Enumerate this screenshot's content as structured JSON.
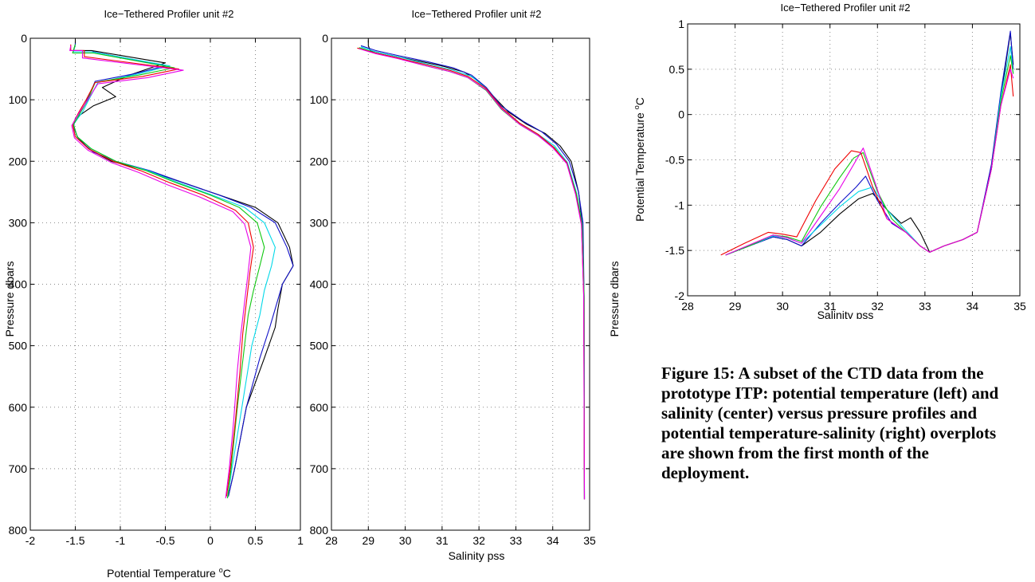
{
  "colors": {
    "black": "#000000",
    "blue": "#1010c8",
    "cyan": "#00d8e8",
    "green": "#10c810",
    "magenta": "#e800e8",
    "red": "#f00000",
    "grid": "#8a8a8a"
  },
  "caption": "Figure 15: A subset of the CTD data from the prototype ITP: potential temperature (left) and salinity (center) versus pressure profiles and potential temperature-salinity (right) overplots are shown from the first month of the deployment.",
  "chart_data": [
    {
      "type": "line",
      "title": "Ice−Tethered Profiler unit #2",
      "xlabel": "Potential Temperature °C",
      "xlabel_main": "Potential Temperature ",
      "xlabel_sup": "o",
      "xlabel_tail": "C",
      "ylabel": "Pressure  dbars",
      "xlim": [
        -2,
        1
      ],
      "ylim": [
        800,
        0
      ],
      "xticks": [
        "-2",
        "-1.5",
        "-1",
        "-0.5",
        "0",
        "0.5",
        "1"
      ],
      "yticks": [
        "0",
        "100",
        "200",
        "300",
        "400",
        "500",
        "600",
        "700",
        "800"
      ],
      "grid": true,
      "series": [
        {
          "color": "black",
          "x": [
            -1.5,
            -1.5,
            -1.52,
            -1.32,
            -0.5,
            -0.9,
            -1.2,
            -1.05,
            -1.3,
            -1.45,
            -1.52,
            -1.48,
            -1.35,
            -1.1,
            -0.7,
            -0.3,
            0.1,
            0.5,
            0.75,
            0.88,
            0.92,
            0.8,
            0.75,
            0.72,
            0.6,
            0.4,
            0.27,
            0.2
          ],
          "y": [
            5,
            10,
            20,
            20,
            40,
            60,
            80,
            95,
            110,
            125,
            140,
            160,
            180,
            200,
            215,
            235,
            255,
            275,
            300,
            340,
            370,
            400,
            440,
            470,
            520,
            600,
            700,
            745
          ]
        },
        {
          "color": "blue",
          "x": [
            -1.5,
            -1.5,
            -1.52,
            -1.3,
            -0.5,
            -0.85,
            -1.28,
            -1.35,
            -1.42,
            -1.5,
            -1.52,
            -1.46,
            -1.3,
            -1.05,
            -0.68,
            -0.3,
            0.1,
            0.45,
            0.72,
            0.85,
            0.92,
            0.8,
            0.72,
            0.66,
            0.55,
            0.4,
            0.27,
            0.2
          ],
          "y": [
            8,
            10,
            22,
            22,
            45,
            58,
            70,
            95,
            115,
            130,
            145,
            165,
            185,
            200,
            215,
            235,
            255,
            275,
            300,
            340,
            370,
            400,
            440,
            470,
            520,
            600,
            700,
            745
          ]
        },
        {
          "color": "cyan",
          "x": [
            -1.5,
            -1.52,
            -1.32,
            -0.45,
            -0.8,
            -1.25,
            -1.35,
            -1.42,
            -1.52,
            -1.48,
            -1.32,
            -1.05,
            -0.7,
            -0.35,
            0.02,
            0.38,
            0.6,
            0.72,
            0.68,
            0.6,
            0.55,
            0.46,
            0.35,
            0.24,
            0.19
          ],
          "y": [
            10,
            22,
            22,
            45,
            58,
            72,
            100,
            120,
            140,
            160,
            180,
            200,
            215,
            235,
            255,
            275,
            300,
            340,
            370,
            410,
            450,
            500,
            600,
            700,
            748
          ]
        },
        {
          "color": "green",
          "x": [
            -1.5,
            -1.53,
            -1.3,
            -0.4,
            -0.8,
            -1.28,
            -1.36,
            -1.44,
            -1.52,
            -1.48,
            -1.32,
            -1.05,
            -0.72,
            -0.38,
            0,
            0.32,
            0.52,
            0.6,
            0.55,
            0.48,
            0.42,
            0.38,
            0.3,
            0.23,
            0.19
          ],
          "y": [
            10,
            24,
            24,
            48,
            60,
            72,
            100,
            120,
            140,
            160,
            180,
            200,
            215,
            235,
            255,
            275,
            300,
            340,
            370,
            410,
            450,
            500,
            600,
            700,
            748
          ]
        },
        {
          "color": "red",
          "x": [
            -1.55,
            -1.55,
            -1.4,
            -1.4,
            -0.35,
            -0.75,
            -1.28,
            -1.38,
            -1.46,
            -1.53,
            -1.5,
            -1.35,
            -1.08,
            -0.78,
            -0.45,
            -0.08,
            0.28,
            0.42,
            0.48,
            0.44,
            0.4,
            0.36,
            0.33,
            0.28,
            0.22,
            0.18
          ],
          "y": [
            10,
            20,
            20,
            30,
            50,
            62,
            72,
            100,
            120,
            140,
            160,
            180,
            200,
            215,
            235,
            255,
            280,
            300,
            340,
            380,
            430,
            480,
            540,
            620,
            700,
            745
          ]
        },
        {
          "color": "magenta",
          "x": [
            -1.55,
            -1.56,
            -1.42,
            -1.42,
            -0.3,
            -0.7,
            -1.25,
            -1.37,
            -1.46,
            -1.54,
            -1.51,
            -1.36,
            -1.1,
            -0.8,
            -0.48,
            -0.12,
            0.25,
            0.38,
            0.45,
            0.42,
            0.38,
            0.34,
            0.3,
            0.26,
            0.21,
            0.17
          ],
          "y": [
            12,
            20,
            20,
            32,
            52,
            64,
            74,
            102,
            122,
            142,
            162,
            182,
            202,
            218,
            238,
            258,
            282,
            302,
            340,
            380,
            430,
            480,
            540,
            620,
            700,
            748
          ]
        }
      ]
    },
    {
      "type": "line",
      "title": "Ice−Tethered Profiler unit #2",
      "xlabel": "Salinity  pss",
      "ylabel": "Pressure  dbars",
      "xlim": [
        28,
        35
      ],
      "ylim": [
        800,
        0
      ],
      "xticks": [
        "28",
        "29",
        "30",
        "31",
        "32",
        "33",
        "34",
        "35"
      ],
      "yticks": [
        "0",
        "100",
        "200",
        "300",
        "400",
        "500",
        "600",
        "700",
        "800"
      ],
      "grid": true,
      "series": [
        {
          "color": "black",
          "x": [
            29,
            29,
            29.05,
            29.5,
            30.2,
            31,
            31.6,
            32,
            32.4,
            32.8,
            33.3,
            33.8,
            34.2,
            34.5,
            34.7,
            34.8,
            34.84,
            34.85,
            34.86
          ],
          "y": [
            3,
            12,
            20,
            26,
            35,
            45,
            55,
            70,
            95,
            120,
            140,
            155,
            175,
            200,
            250,
            300,
            400,
            550,
            750
          ]
        },
        {
          "color": "blue",
          "x": [
            28.8,
            29.2,
            29.8,
            30.6,
            31.3,
            31.8,
            32.2,
            32.6,
            33.2,
            33.7,
            34.1,
            34.45,
            34.7,
            34.82,
            34.85,
            34.86
          ],
          "y": [
            12,
            20,
            28,
            38,
            48,
            60,
            80,
            110,
            135,
            152,
            172,
            200,
            250,
            300,
            420,
            750
          ]
        },
        {
          "color": "cyan",
          "x": [
            28.8,
            29.2,
            29.8,
            30.6,
            31.3,
            31.8,
            32.2,
            32.6,
            33.1,
            33.6,
            34.05,
            34.4,
            34.65,
            34.8,
            34.85,
            34.86
          ],
          "y": [
            14,
            22,
            30,
            42,
            52,
            62,
            82,
            112,
            138,
            156,
            175,
            202,
            252,
            302,
            420,
            750
          ]
        },
        {
          "color": "green",
          "x": [
            28.75,
            29.2,
            29.8,
            30.5,
            31.2,
            31.7,
            32.2,
            32.6,
            33.1,
            33.6,
            34.05,
            34.4,
            34.65,
            34.8,
            34.85,
            34.86
          ],
          "y": [
            15,
            24,
            32,
            44,
            54,
            64,
            85,
            115,
            140,
            158,
            178,
            205,
            255,
            305,
            420,
            750
          ]
        },
        {
          "color": "red",
          "x": [
            28.7,
            29.2,
            29.8,
            30.5,
            31.2,
            31.7,
            32.2,
            32.6,
            33.1,
            33.6,
            34,
            34.38,
            34.62,
            34.78,
            34.84,
            34.86
          ],
          "y": [
            16,
            24,
            32,
            42,
            52,
            62,
            82,
            112,
            138,
            156,
            176,
            202,
            252,
            302,
            420,
            750
          ]
        },
        {
          "color": "magenta",
          "x": [
            28.75,
            29.2,
            29.8,
            30.5,
            31.2,
            31.7,
            32.2,
            32.6,
            33.1,
            33.6,
            34,
            34.38,
            34.62,
            34.78,
            34.84,
            34.86
          ],
          "y": [
            17,
            25,
            33,
            44,
            54,
            64,
            84,
            114,
            140,
            158,
            178,
            204,
            254,
            304,
            420,
            750
          ]
        }
      ]
    },
    {
      "type": "line",
      "title": "Ice−Tethered Profiler unit #2",
      "xlabel": "Salinity  pss",
      "ylabel": "Potential Temperature °C",
      "ylabel_main": "Potential Temperature ",
      "ylabel_sup": "o",
      "ylabel_tail": "C",
      "xlim": [
        28,
        35
      ],
      "ylim": [
        -2,
        1
      ],
      "xticks": [
        "28",
        "29",
        "30",
        "31",
        "32",
        "33",
        "34",
        "35"
      ],
      "yticks": [
        "-2",
        "-1.5",
        "-1",
        "-0.5",
        "0",
        "0.5",
        "1"
      ],
      "grid": true,
      "series": [
        {
          "color": "black",
          "x": [
            28.8,
            29.3,
            29.8,
            30.1,
            30.4,
            30.8,
            31.2,
            31.6,
            31.9,
            32.2,
            32.5,
            32.7,
            32.9,
            33.1,
            33.4,
            33.8,
            34.1,
            34.4,
            34.6,
            34.8,
            34.86
          ],
          "y": [
            -1.55,
            -1.45,
            -1.35,
            -1.38,
            -1.45,
            -1.3,
            -1.1,
            -0.93,
            -0.87,
            -1.05,
            -1.2,
            -1.14,
            -1.3,
            -1.52,
            -1.45,
            -1.38,
            -1.3,
            -0.6,
            0.2,
            0.9,
            0.55
          ]
        },
        {
          "color": "blue",
          "x": [
            28.8,
            29.3,
            29.8,
            30.1,
            30.4,
            30.8,
            31.2,
            31.55,
            31.75,
            32,
            32.3,
            32.6,
            32.9,
            33.1,
            33.4,
            33.8,
            34.1,
            34.4,
            34.6,
            34.8,
            34.86
          ],
          "y": [
            -1.55,
            -1.45,
            -1.35,
            -1.38,
            -1.45,
            -1.2,
            -0.98,
            -0.8,
            -0.68,
            -0.95,
            -1.2,
            -1.3,
            -1.45,
            -1.52,
            -1.45,
            -1.38,
            -1.3,
            -0.55,
            0.25,
            0.92,
            0.5
          ]
        },
        {
          "color": "cyan",
          "x": [
            28.8,
            29.3,
            29.8,
            30.1,
            30.4,
            30.8,
            31.2,
            31.6,
            31.9,
            32.2,
            32.6,
            32.9,
            33.1,
            33.4,
            33.8,
            34.1,
            34.4,
            34.6,
            34.8,
            34.86
          ],
          "y": [
            -1.55,
            -1.45,
            -1.34,
            -1.36,
            -1.42,
            -1.22,
            -1.02,
            -0.85,
            -0.8,
            -1.05,
            -1.28,
            -1.45,
            -1.52,
            -1.45,
            -1.38,
            -1.3,
            -0.6,
            0.2,
            0.75,
            0.45
          ]
        },
        {
          "color": "green",
          "x": [
            28.8,
            29.3,
            29.8,
            30.1,
            30.4,
            30.8,
            31.2,
            31.5,
            31.7,
            32,
            32.3,
            32.6,
            32.9,
            33.1,
            33.4,
            33.8,
            34.1,
            34.4,
            34.6,
            34.8,
            34.86
          ],
          "y": [
            -1.55,
            -1.45,
            -1.33,
            -1.35,
            -1.4,
            -1.02,
            -0.7,
            -0.48,
            -0.42,
            -0.85,
            -1.15,
            -1.3,
            -1.45,
            -1.52,
            -1.45,
            -1.38,
            -1.3,
            -0.6,
            0.15,
            0.65,
            0.45
          ]
        },
        {
          "color": "red",
          "x": [
            28.7,
            29.2,
            29.7,
            30,
            30.3,
            30.7,
            31.1,
            31.45,
            31.65,
            31.9,
            32.2,
            32.6,
            32.9,
            33.1,
            33.4,
            33.8,
            34.1,
            34.4,
            34.6,
            34.8,
            34.86
          ],
          "y": [
            -1.55,
            -1.42,
            -1.3,
            -1.32,
            -1.35,
            -0.95,
            -0.6,
            -0.4,
            -0.42,
            -0.8,
            -1.15,
            -1.3,
            -1.45,
            -1.52,
            -1.45,
            -1.38,
            -1.3,
            -0.6,
            0.1,
            0.55,
            0.2
          ]
        },
        {
          "color": "magenta",
          "x": [
            28.8,
            29.3,
            29.8,
            30.1,
            30.4,
            30.8,
            31.2,
            31.5,
            31.7,
            31.95,
            32.2,
            32.6,
            32.9,
            33.1,
            33.4,
            33.8,
            34.1,
            34.4,
            34.6,
            34.8,
            34.86
          ],
          "y": [
            -1.55,
            -1.44,
            -1.33,
            -1.36,
            -1.42,
            -1.12,
            -0.82,
            -0.55,
            -0.37,
            -0.75,
            -1.15,
            -1.3,
            -1.45,
            -1.52,
            -1.45,
            -1.38,
            -1.3,
            -0.6,
            0.1,
            0.5,
            0.4
          ]
        }
      ]
    }
  ]
}
